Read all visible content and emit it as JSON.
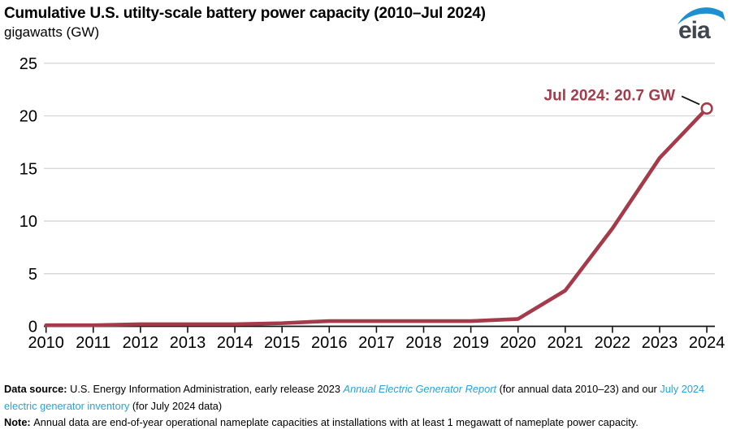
{
  "header": {
    "title": "Cumulative U.S. utilty-scale battery power capacity (2010–Jul 2024)",
    "subtitle": "gigawatts (GW)",
    "logo_text": "eia"
  },
  "colors": {
    "line": "#a53b4a",
    "annotation_text": "#a53b4a",
    "marker_fill": "#ffffff",
    "grid": "#d9d9d9",
    "axis": "#111111",
    "tick_label": "#000000",
    "link_blue": "#2aa2db",
    "logo_letters": "#3f4650",
    "logo_swoosh": "#1e8fd0",
    "leader_line": "#111111"
  },
  "chart_data": {
    "type": "line",
    "title": "Cumulative U.S. utilty-scale battery power capacity (2010–Jul 2024)",
    "ylabel": "gigawatts (GW)",
    "series_name": "Cumulative utility-scale battery power capacity",
    "x": [
      2010,
      2011,
      2012,
      2013,
      2014,
      2015,
      2016,
      2017,
      2018,
      2019,
      2020,
      2021,
      2022,
      2023,
      2024
    ],
    "x_tick_labels": [
      "2010",
      "2011",
      "2012",
      "2013",
      "2014",
      "2015",
      "2016",
      "2017",
      "2018",
      "2019",
      "2020",
      "2021",
      "2022",
      "2023",
      "2024"
    ],
    "values": [
      0.1,
      0.1,
      0.2,
      0.2,
      0.2,
      0.3,
      0.5,
      0.5,
      0.5,
      0.5,
      0.7,
      3.4,
      9.3,
      16.0,
      20.7
    ],
    "last_point_label": "Jul 2024",
    "ylim": [
      0,
      25
    ],
    "yticks": [
      0,
      5,
      10,
      15,
      20,
      25
    ],
    "grid": "horizontal",
    "legend": "none",
    "annotation": {
      "label": "Jul 2024: 20.7 GW",
      "x": 2024,
      "y": 20.7
    }
  },
  "footer": {
    "lines": [
      [
        {
          "text": "Data source: ",
          "bold": true
        },
        {
          "text": "U.S. Energy Information Administration, early release 2023 "
        },
        {
          "text": "Annual Electric Generator Report",
          "style": "link-italic"
        },
        {
          "text": " (for annual data 2010–23) and our "
        },
        {
          "text": "July 2024",
          "style": "link"
        }
      ],
      [
        {
          "text": "electric generator inventory",
          "style": "link"
        },
        {
          "text": " (for July 2024 data)"
        }
      ],
      [
        {
          "text": "Note: ",
          "bold": true
        },
        {
          "text": "Annual data are end-of-year operational nameplate capacities at installations with at least 1 megawatt of nameplate power capacity."
        }
      ]
    ]
  }
}
